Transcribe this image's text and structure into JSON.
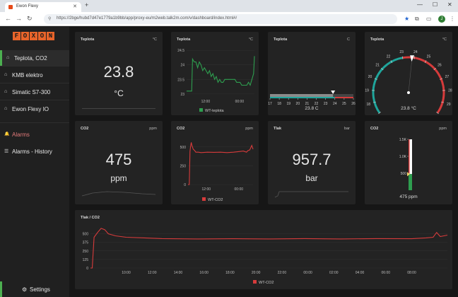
{
  "browser": {
    "tab_title": "Ewon Flexy",
    "url": "https://2bge/hubd7d47e1779a1b9bb/app/proxy-eu/m2web.talk2m.com/v/dashboard/index.html#/",
    "avatar": "J"
  },
  "sidebar": {
    "logo_letters": [
      "F",
      "O",
      "X",
      "O",
      "N"
    ],
    "items": [
      {
        "label": "Teplota, CO2",
        "icon": "⌂"
      },
      {
        "label": "KMB elektro",
        "icon": "⌂"
      },
      {
        "label": "Simatic S7-300",
        "icon": "⌂"
      },
      {
        "label": "Ewon Flexy IO",
        "icon": "⌂"
      },
      {
        "label": "Alarms",
        "icon": "🔔"
      },
      {
        "label": "Alarms - History",
        "icon": "☰"
      }
    ],
    "settings": "Settings"
  },
  "panels": {
    "t1": {
      "title": "Teplota",
      "unit": "°C",
      "value": "23.8",
      "value_unit": "°C"
    },
    "t2": {
      "title": "Teplota",
      "unit": "°C",
      "legend": "WT-teplota"
    },
    "t3": {
      "title": "Teplota",
      "unit": "C",
      "caption": "23.8 C"
    },
    "t4": {
      "title": "Teplota",
      "unit": "°C",
      "caption": "23.8 °C"
    },
    "c1": {
      "title": "CO2",
      "unit": "ppm",
      "value": "475",
      "value_unit": "ppm"
    },
    "c2": {
      "title": "CO2",
      "unit": "ppm",
      "legend": "WT-CO2"
    },
    "k1": {
      "title": "Tlak",
      "unit": "bar",
      "value": "957.7",
      "value_unit": "bar"
    },
    "c3": {
      "title": "CO2",
      "unit": "ppm",
      "caption": "475 ppm"
    },
    "bottom": {
      "title": "Tlak / CO2",
      "legend": "WT-CO2"
    }
  },
  "chart_data": [
    {
      "type": "line",
      "title": "Teplota",
      "series": [
        {
          "name": "WT-teplota",
          "color": "#2e9e4f"
        }
      ],
      "x_ticks": [
        "12:00",
        "00:00"
      ],
      "y_ticks": [
        23.0,
        23.5,
        24.0,
        24.5
      ],
      "ylim": [
        22.9,
        24.6
      ],
      "x": [
        0,
        2,
        4,
        6,
        7,
        9,
        11,
        13,
        15,
        17,
        19,
        21,
        23,
        25,
        27,
        29,
        31,
        33,
        35,
        37,
        39,
        41,
        43,
        45,
        47,
        49,
        51,
        53,
        55,
        57,
        59,
        61,
        63,
        65,
        67,
        69,
        71,
        73,
        75,
        77,
        79,
        80
      ],
      "values": [
        23.1,
        23.1,
        23.1,
        23.1,
        24.2,
        24.1,
        24.1,
        23.9,
        24.1,
        24.0,
        23.8,
        23.9,
        23.8,
        23.7,
        23.8,
        23.6,
        23.7,
        23.5,
        23.6,
        23.4,
        23.5,
        23.4,
        23.4,
        23.5,
        23.5,
        23.5,
        23.5,
        23.5,
        23.5,
        23.5,
        23.4,
        23.4,
        23.4,
        23.3,
        23.3,
        23.3,
        23.3,
        23.4,
        23.3,
        23.5,
        23.7,
        24.3
      ]
    },
    {
      "type": "gauge-linear",
      "title": "Teplota",
      "min": 17,
      "max": 26,
      "ticks": [
        17,
        18,
        19,
        20,
        21,
        22,
        23,
        24,
        25,
        26
      ],
      "value": 23.8,
      "thresholds": [
        {
          "from": 17,
          "to": 24,
          "color": "#1fa59b"
        },
        {
          "from": 24,
          "to": 26,
          "color": "#d63b3b"
        }
      ]
    },
    {
      "type": "gauge-radial",
      "title": "Teplota",
      "min": 17,
      "max": 30,
      "ticks": [
        17,
        18,
        19,
        20,
        21,
        22,
        23,
        24,
        25,
        26,
        27,
        28,
        29,
        30
      ],
      "value": 23.8,
      "thresholds": [
        {
          "from": 17,
          "to": 23,
          "color": "#1fa59b"
        },
        {
          "from": 23,
          "to": 30,
          "color": "#d63b3b"
        }
      ]
    },
    {
      "type": "line",
      "title": "CO2",
      "series": [
        {
          "name": "WT-CO2",
          "color": "#d63b3b"
        }
      ],
      "x_ticks": [
        "12:00",
        "00:00"
      ],
      "y_ticks": [
        0,
        250,
        500
      ],
      "ylim": [
        0,
        620
      ],
      "x": [
        0,
        2,
        3,
        4,
        5,
        6,
        8,
        10,
        12,
        16,
        20,
        30,
        40,
        50,
        60,
        70,
        80,
        85,
        90,
        92,
        95,
        98,
        100
      ],
      "values": [
        0,
        0,
        440,
        510,
        560,
        520,
        470,
        455,
        430,
        430,
        425,
        430,
        428,
        430,
        425,
        430,
        440,
        445,
        430,
        450,
        460,
        520,
        470
      ]
    },
    {
      "type": "gauge-bar",
      "title": "CO2",
      "min": 0,
      "max": 1500,
      "ticks": [
        "500",
        "1.0K",
        "1.5K"
      ],
      "value": 475
    },
    {
      "type": "line",
      "title": "Tlak / CO2",
      "series": [
        {
          "name": "WT-CO2",
          "color": "#d63b3b"
        }
      ],
      "x_ticks": [
        "10:00",
        "12:00",
        "14:00",
        "16:00",
        "18:00",
        "20:00",
        "22:00",
        "00:00",
        "02:00",
        "04:00",
        "06:00",
        "08:00"
      ],
      "y_ticks": [
        0,
        125,
        250,
        375,
        500
      ],
      "ylim": [
        0,
        620
      ],
      "x": [
        0,
        0.5,
        1,
        2,
        3,
        4,
        5,
        7,
        10,
        15,
        20,
        30,
        40,
        50,
        60,
        70,
        80,
        90,
        94,
        96,
        97,
        98,
        100
      ],
      "values": [
        0,
        0,
        450,
        520,
        580,
        560,
        500,
        470,
        450,
        440,
        430,
        425,
        428,
        425,
        430,
        425,
        430,
        428,
        440,
        450,
        520,
        460,
        480
      ]
    }
  ]
}
